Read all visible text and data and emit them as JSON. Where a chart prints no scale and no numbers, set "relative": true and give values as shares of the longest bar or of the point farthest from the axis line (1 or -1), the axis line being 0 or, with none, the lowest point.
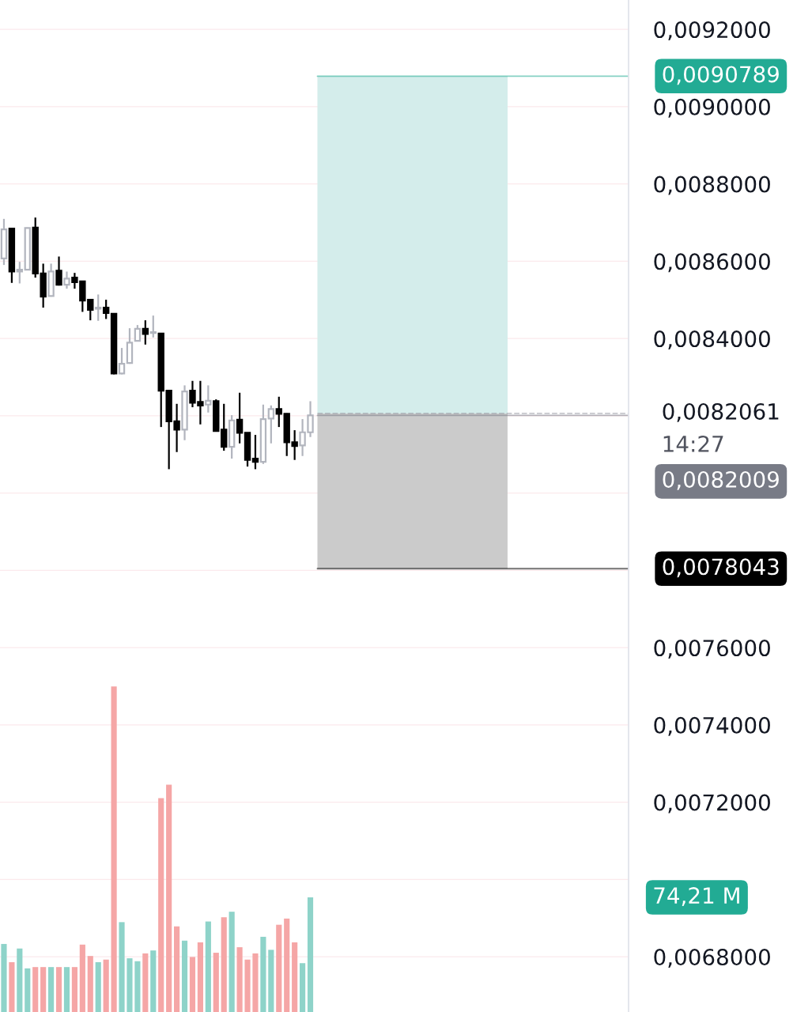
{
  "chart_data": [
    {
      "type": "candlestick",
      "categories": [
        null,
        null,
        null,
        null,
        null,
        null,
        null,
        null,
        null,
        null,
        null,
        null,
        null,
        null,
        null,
        null,
        null,
        null,
        null,
        null,
        null,
        null,
        null,
        null,
        null,
        null,
        null,
        null,
        null,
        null,
        null,
        null,
        null,
        null,
        null,
        null,
        null,
        null,
        null,
        null,
        null,
        null,
        null,
        null,
        null,
        null,
        null,
        null,
        null,
        null,
        null,
        null,
        null,
        null,
        null,
        null,
        null,
        null,
        null,
        null,
        null,
        null,
        null,
        null,
        null,
        null,
        null,
        null,
        null,
        null,
        null,
        null,
        null,
        null,
        null,
        null,
        null,
        null,
        null,
        null
      ],
      "ohlc": [
        [
          0.0086073,
          0.0087096,
          0.0085903,
          0.0086824
        ],
        [
          0.0086844,
          0.0086858,
          0.0085439,
          0.0085732
        ],
        [
          0.0085732,
          0.0085985,
          0.0085425,
          0.008578
        ],
        [
          0.008578,
          0.0086871,
          0.0085766,
          0.0086858
        ],
        [
          0.0086871,
          0.008713,
          0.0085575,
          0.0085685
        ],
        [
          0.0085685,
          0.0085937,
          0.0084798,
          0.0085084
        ],
        [
          0.0085098,
          0.0085937,
          0.0085084,
          0.0085732
        ],
        [
          0.0085753,
          0.0086121,
          0.0085371,
          0.0085391
        ],
        [
          0.0085391,
          0.0085732,
          0.0085289,
          0.0085548
        ],
        [
          0.0085575,
          0.0085698,
          0.0085289,
          0.008546
        ],
        [
          0.008548,
          0.008548,
          0.0084689,
          0.0084982
        ],
        [
          0.0085003,
          0.0085016,
          0.0084471,
          0.0084743
        ],
        [
          0.0084771,
          0.0085139,
          0.0084457,
          0.0084798
        ],
        [
          0.0084798,
          0.0085003,
          0.0084505,
          0.0084662
        ],
        [
          0.0084641,
          0.0084641,
          0.0083073,
          0.0083093
        ],
        [
          0.0083093,
          0.0083755,
          0.0083073,
          0.0083345
        ],
        [
          0.0083366,
          0.0084266,
          0.0083345,
          0.0083891
        ],
        [
          0.0083939,
          0.0084348,
          0.0083939,
          0.0084252
        ],
        [
          0.0084252,
          0.0084471,
          0.0083843,
          0.0084116
        ],
        [
          0.0084143,
          0.0084593,
          0.0084027,
          0.0084164
        ],
        [
          0.008413,
          0.008413,
          0.0081709,
          0.008265
        ],
        [
          0.008265,
          0.008265,
          0.0080618,
          0.0081859
        ],
        [
          0.0081859,
          0.0082309,
          0.0081061,
          0.0081641
        ],
        [
          0.0081641,
          0.0082787,
          0.0081368,
          0.008263
        ],
        [
          0.008265,
          0.0082903,
          0.0082221,
          0.0082336
        ],
        [
          0.0082357,
          0.0082903,
          0.0081777,
          0.0082268
        ],
        [
          0.0082289,
          0.0082787,
          0.0082084,
          0.0082391
        ],
        [
          0.0082377,
          0.0082425,
          0.0081607,
          0.0081607
        ],
        [
          0.0081641,
          0.0082309,
          0.0081095,
          0.0081198
        ],
        [
          0.0081198,
          0.0082016,
          0.0080891,
          0.008188
        ],
        [
          0.00819,
          0.0082596,
          0.0081286,
          0.0081559
        ],
        [
          0.0081559,
          0.0081559,
          0.0080686,
          0.0080857
        ],
        [
          0.0080891,
          0.0081505,
          0.0080618,
          0.0080809
        ],
        [
          0.0080809,
          0.0082289,
          0.0080754,
          0.0081914
        ],
        [
          0.0081927,
          0.0082268,
          0.0081286,
          0.0082173
        ],
        [
          0.0082173,
          0.0082493,
          0.0081709,
          0.008205
        ],
        [
          0.008205,
          0.0082064,
          0.0080959,
          0.0081314
        ],
        [
          0.0081314,
          0.0081627,
          0.0080857,
          0.0081218
        ],
        [
          0.0081232,
          0.0081914,
          0.0080959,
          0.0081573
        ],
        [
          0.0081573,
          0.0082377,
          0.008145,
          0.0082009
        ],
        null,
        null,
        null,
        null,
        null,
        null,
        null,
        null,
        null,
        null,
        null,
        null,
        null,
        null,
        null,
        null,
        null,
        null,
        null,
        null,
        null,
        null,
        null,
        null,
        null,
        null,
        null,
        null,
        null,
        null,
        null,
        null,
        null,
        null,
        null,
        null,
        null,
        null,
        null,
        null
      ],
      "colors": [
        "#b2b5be",
        "#000000",
        "#b2b5be",
        "#b2b5be",
        "#000000",
        "#000000",
        "#b2b5be",
        "#000000",
        "#b2b5be",
        "#000000",
        "#000000",
        "#000000",
        "#b2b5be",
        "#000000",
        "#000000",
        "#b2b5be",
        "#b2b5be",
        "#b2b5be",
        "#000000",
        "#b2b5be",
        "#000000",
        "#000000",
        "#000000",
        "#b2b5be",
        "#000000",
        "#000000",
        "#b2b5be",
        "#000000",
        "#000000",
        "#b2b5be",
        "#000000",
        "#000000",
        "#000000",
        "#b2b5be",
        "#b2b5be",
        "#000000",
        "#000000",
        "#000000",
        "#b2b5be",
        "#b2b5be",
        null,
        null,
        null,
        null,
        null,
        null,
        null,
        null,
        null,
        null,
        null,
        null,
        null,
        null,
        null,
        null,
        null,
        null,
        null,
        null,
        null,
        null,
        null,
        null,
        null,
        null,
        null,
        null,
        null,
        null,
        null,
        null,
        null,
        null,
        null,
        null,
        null,
        null,
        null,
        null
      ],
      "ylim": [
        0.006657,
        0.009276
      ],
      "yticks": [
        {
          "value": 0.0068,
          "label": "0,0068000"
        },
        {
          "value": 0.007,
          "label": null
        },
        {
          "value": 0.0072,
          "label": "0,0072000"
        },
        {
          "value": 0.0074,
          "label": "0,0074000"
        },
        {
          "value": 0.0076,
          "label": "0,0076000"
        },
        {
          "value": 0.0078,
          "label": null
        },
        {
          "value": 0.008,
          "label": null
        },
        {
          "value": 0.0082,
          "label": null
        },
        {
          "value": 0.0084,
          "label": "0,0084000"
        },
        {
          "value": 0.0086,
          "label": "0,0086000"
        },
        {
          "value": 0.0088,
          "label": "0,0088000"
        },
        {
          "value": 0.009,
          "label": "0,0090000"
        },
        {
          "value": 0.0092,
          "label": "0,0092000"
        }
      ],
      "grid": "y",
      "bands": [
        {
          "axis": "y",
          "from": 0.0082061,
          "to": 0.0090789,
          "color": "#d4edeb"
        },
        {
          "axis": "y",
          "from": 0.0078043,
          "to": 0.0082061,
          "color": "#cbcbcb"
        }
      ],
      "ref_lines": [
        {
          "axis": "y",
          "value": 0.0090789,
          "label": "0,0090789",
          "color": "#22ab94"
        },
        {
          "axis": "y",
          "value": 0.0082061,
          "label": "0,0082061",
          "color": "#9598a1",
          "line_style": "dashed"
        },
        {
          "axis": "y",
          "value": 0.0082009,
          "label": "0,0082009",
          "color": "#787b86"
        },
        {
          "axis": "y",
          "value": 0.0078043,
          "label": "0,0078043",
          "color": "#000000"
        }
      ],
      "annotations": [
        "14:27"
      ]
    },
    {
      "type": "bar",
      "relative": true,
      "categories": [
        null,
        null,
        null,
        null,
        null,
        null,
        null,
        null,
        null,
        null,
        null,
        null,
        null,
        null,
        null,
        null,
        null,
        null,
        null,
        null,
        null,
        null,
        null,
        null,
        null,
        null,
        null,
        null,
        null,
        null,
        null,
        null,
        null,
        null,
        null,
        null,
        null,
        null,
        null,
        null,
        null,
        null,
        null,
        null,
        null,
        null,
        null,
        null,
        null,
        null,
        null,
        null,
        null,
        null,
        null,
        null,
        null,
        null,
        null,
        null,
        null,
        null,
        null,
        null,
        null,
        null,
        null,
        null,
        null,
        null,
        null,
        null,
        null,
        null,
        null,
        null,
        null,
        null,
        null,
        null
      ],
      "values": [
        0.209,
        0.153,
        0.195,
        0.134,
        0.138,
        0.138,
        0.138,
        0.138,
        0.138,
        0.138,
        0.207,
        0.172,
        0.153,
        0.161,
        1,
        0.276,
        0.165,
        0.156,
        0.18,
        0.189,
        0.657,
        0.698,
        0.263,
        0.219,
        0.169,
        0.214,
        0.278,
        0.182,
        0.291,
        0.308,
        0.199,
        0.161,
        0.18,
        0.231,
        0.191,
        0.268,
        0.287,
        0.214,
        0.15,
        0.352,
        null,
        null,
        null,
        null,
        null,
        null,
        null,
        null,
        null,
        null,
        null,
        null,
        null,
        null,
        null,
        null,
        null,
        null,
        null,
        null,
        null,
        null,
        null,
        null,
        null,
        null,
        null,
        null,
        null,
        null,
        null,
        null,
        null,
        null,
        null,
        null,
        null,
        null,
        null,
        null
      ],
      "colors": [
        "#8ed3c9",
        "#f5a6a6",
        "#8ed3c9",
        "#8ed3c9",
        "#f5a6a6",
        "#f5a6a6",
        "#8ed3c9",
        "#f5a6a6",
        "#8ed3c9",
        "#f5a6a6",
        "#f5a6a6",
        "#f5a6a6",
        "#8ed3c9",
        "#f5a6a6",
        "#f5a6a6",
        "#8ed3c9",
        "#8ed3c9",
        "#8ed3c9",
        "#f5a6a6",
        "#8ed3c9",
        "#f5a6a6",
        "#f5a6a6",
        "#f5a6a6",
        "#8ed3c9",
        "#f5a6a6",
        "#f5a6a6",
        "#8ed3c9",
        "#f5a6a6",
        "#f5a6a6",
        "#8ed3c9",
        "#f5a6a6",
        "#f5a6a6",
        "#f5a6a6",
        "#8ed3c9",
        "#8ed3c9",
        "#f5a6a6",
        "#f5a6a6",
        "#f5a6a6",
        "#8ed3c9",
        "#8ed3c9",
        null,
        null,
        null,
        null,
        null,
        null,
        null,
        null,
        null,
        null,
        null,
        null,
        null,
        null,
        null,
        null,
        null,
        null,
        null,
        null,
        null,
        null,
        null,
        null,
        null,
        null,
        null,
        null,
        null,
        null,
        null,
        null,
        null,
        null,
        null,
        null,
        null,
        null,
        null,
        null
      ],
      "annotations": [
        "74,21 M"
      ]
    }
  ]
}
